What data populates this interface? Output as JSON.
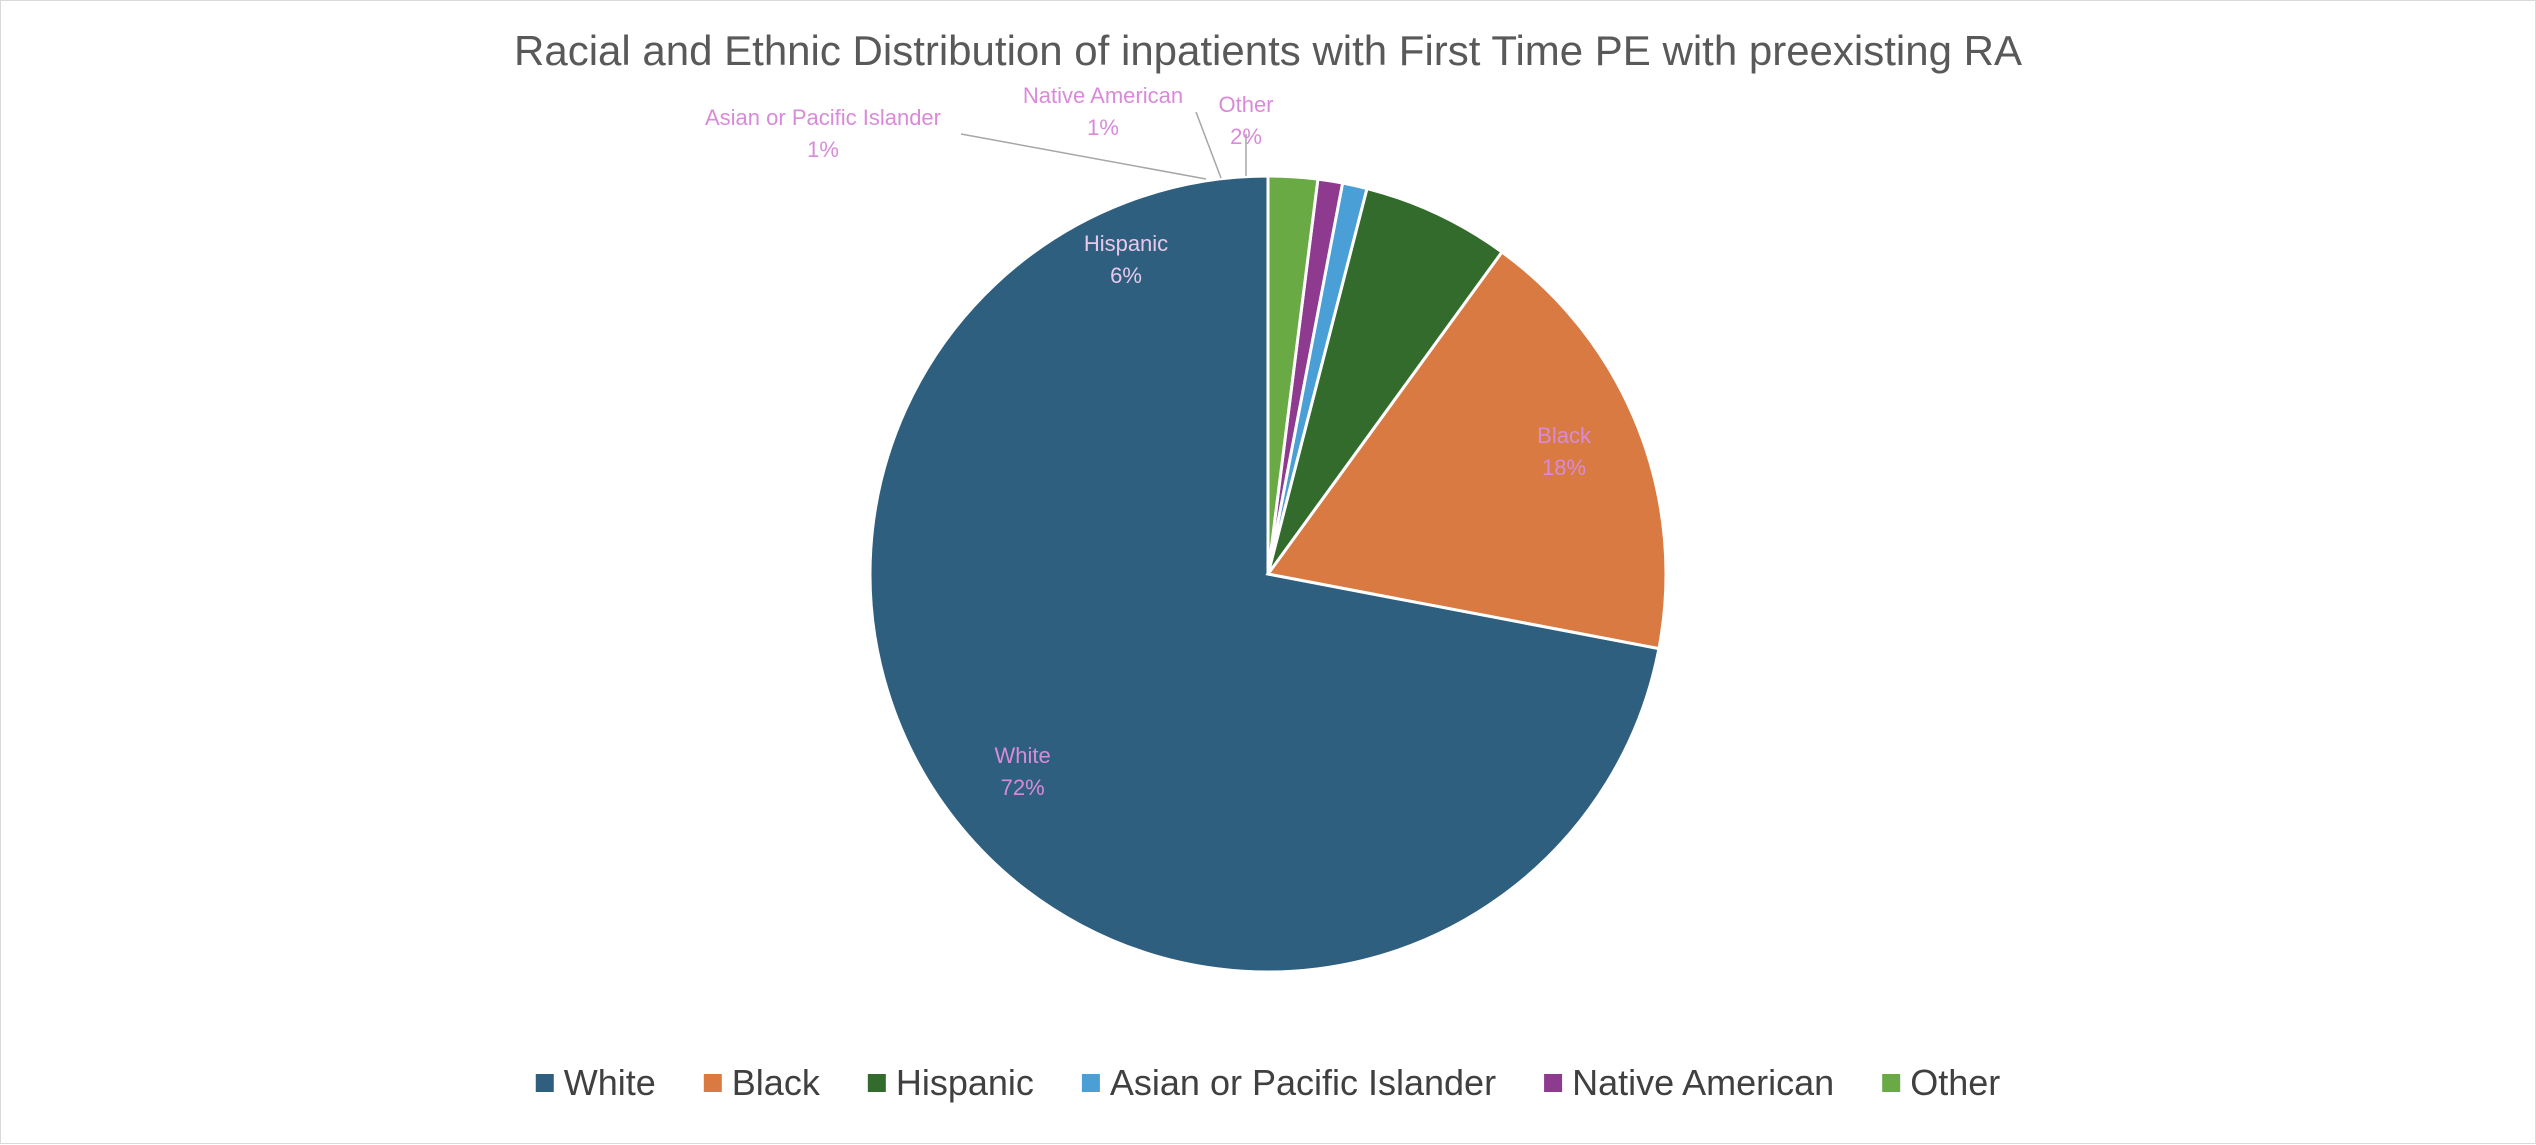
{
  "chart_data": {
    "type": "pie",
    "title": "Racial and Ethnic Distribution of inpatients with First Time  PE with preexisting RA",
    "categories": [
      "White",
      "Black",
      "Hispanic",
      "Asian or Pacific Islander",
      "Native American",
      "Other"
    ],
    "values": [
      72,
      18,
      6,
      1,
      1,
      2
    ],
    "labels": [
      "72%",
      "18%",
      "6%",
      "1%",
      "1%",
      "2%"
    ],
    "colors": [
      "#2e5f7f",
      "#d97a42",
      "#336b2d",
      "#4a9fd6",
      "#8e3a8e",
      "#6aaa45"
    ],
    "label_color": "#d98ad9",
    "legend_position": "bottom"
  }
}
